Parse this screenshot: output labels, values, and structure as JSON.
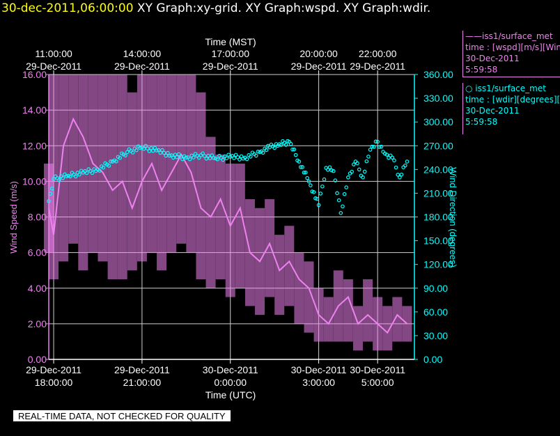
{
  "header": {
    "timestamp": "30-dec-2011,06:00:00",
    "titles": "XY Graph:xy-grid.  XY Graph:wspd.  XY Graph:wdir."
  },
  "legend": [
    {
      "line1": "——iss1/surface_met",
      "line2": "time : [wspd][m/s][Wind",
      "line3": "30-Dec-2011",
      "line4": "5:59:58",
      "color": "#ee82ee"
    },
    {
      "line1": "○ iss1/surface_met",
      "line2": "time : [wdir][degrees][W",
      "line3": "30-Dec-2011",
      "line4": "5:59:58",
      "color": "#00ffff"
    }
  ],
  "footer": {
    "warning": "REAL-TIME DATA, NOT CHECKED FOR QUALITY"
  },
  "chart_data": {
    "type": "line",
    "x_label_bottom": "Time (UTC)",
    "x_label_top": "Time (MST)",
    "ylabel_left": "Wind Speed (m/s)",
    "ylabel_right": "Wind Direction (degrees)",
    "ylim_left": [
      0,
      16
    ],
    "ylim_right": [
      0,
      360
    ],
    "xlim": [
      "2011-12-29 17:50",
      "2011-12-30 06:15"
    ],
    "grid": true,
    "yticks_left": [
      "0.00",
      "2.00",
      "4.00",
      "6.00",
      "8.00",
      "10.00",
      "12.00",
      "14.00",
      "16.00"
    ],
    "yticks_right": [
      "0.00",
      "30.00",
      "60.00",
      "90.00",
      "120.00",
      "150.00",
      "180.00",
      "210.00",
      "240.00",
      "270.00",
      "300.00",
      "330.00",
      "360.00"
    ],
    "xticks_bottom": [
      {
        "t": "2011-12-29 18:00",
        "l1": "29-Dec-2011",
        "l2": "18:00:00"
      },
      {
        "t": "2011-12-29 21:00",
        "l1": "29-Dec-2011",
        "l2": "21:00:00"
      },
      {
        "t": "2011-12-30 00:00",
        "l1": "30-Dec-2011",
        "l2": "0:00:00"
      },
      {
        "t": "2011-12-30 03:00",
        "l1": "30-Dec-2011",
        "l2": "3:00:00"
      },
      {
        "t": "2011-12-30 05:00",
        "l1": "30-Dec-2011",
        "l2": "5:00:00"
      }
    ],
    "xticks_top": [
      {
        "t": "2011-12-29 18:00",
        "l1": "11:00:00",
        "l2": "29-Dec-2011"
      },
      {
        "t": "2011-12-29 21:00",
        "l1": "14:00:00",
        "l2": "29-Dec-2011"
      },
      {
        "t": "2011-12-30 00:00",
        "l1": "17:00:00",
        "l2": "29-Dec-2011"
      },
      {
        "t": "2011-12-30 03:00",
        "l1": "20:00:00",
        "l2": "29-Dec-2011"
      },
      {
        "t": "2011-12-30 05:00",
        "l1": "22:00:00",
        "l2": "29-Dec-2011"
      }
    ],
    "series": [
      {
        "name": "iss1/surface_met wspd",
        "axis": "left",
        "color": "#ee82ee",
        "style": "line",
        "x": [
          "2011-12-29 17:50",
          "2011-12-29 18:00",
          "2011-12-29 18:20",
          "2011-12-29 18:40",
          "2011-12-29 19:00",
          "2011-12-29 19:20",
          "2011-12-29 19:40",
          "2011-12-29 20:00",
          "2011-12-29 20:20",
          "2011-12-29 20:40",
          "2011-12-29 21:00",
          "2011-12-29 21:20",
          "2011-12-29 21:40",
          "2011-12-29 22:00",
          "2011-12-29 22:20",
          "2011-12-29 22:40",
          "2011-12-29 23:00",
          "2011-12-29 23:20",
          "2011-12-29 23:40",
          "2011-12-30 00:00",
          "2011-12-30 00:20",
          "2011-12-30 00:40",
          "2011-12-30 01:00",
          "2011-12-30 01:20",
          "2011-12-30 01:40",
          "2011-12-30 02:00",
          "2011-12-30 02:20",
          "2011-12-30 02:40",
          "2011-12-30 03:00",
          "2011-12-30 03:20",
          "2011-12-30 03:40",
          "2011-12-30 04:00",
          "2011-12-30 04:20",
          "2011-12-30 04:40",
          "2011-12-30 05:00",
          "2011-12-30 05:20",
          "2011-12-30 05:40",
          "2011-12-30 06:00"
        ],
        "y": [
          8.5,
          7.0,
          12.0,
          13.5,
          12.5,
          11.0,
          10.5,
          9.5,
          10.0,
          8.5,
          10.0,
          11.0,
          9.5,
          10.5,
          11.5,
          10.5,
          8.5,
          8.0,
          9.0,
          7.5,
          8.5,
          6.0,
          5.5,
          6.5,
          5.0,
          5.5,
          4.5,
          4.0,
          2.5,
          2.0,
          3.0,
          3.5,
          2.0,
          2.5,
          2.0,
          1.5,
          2.5,
          2.0
        ],
        "hi": [
          11.0,
          16.0,
          16.0,
          16.0,
          16.0,
          16.0,
          16.0,
          16.0,
          16.0,
          15.0,
          16.0,
          16.0,
          16.0,
          16.0,
          16.0,
          16.0,
          15.0,
          12.5,
          11.5,
          11.0,
          11.0,
          9.0,
          8.5,
          9.0,
          7.0,
          7.5,
          6.0,
          5.5,
          4.0,
          3.5,
          5.0,
          4.5,
          3.0,
          4.5,
          3.5,
          3.0,
          3.5,
          3.0
        ],
        "lo": [
          6.0,
          4.5,
          5.5,
          6.5,
          5.0,
          6.0,
          5.5,
          4.5,
          4.5,
          5.0,
          5.5,
          6.0,
          5.0,
          6.0,
          6.5,
          6.0,
          4.5,
          4.0,
          4.5,
          3.5,
          4.0,
          3.0,
          2.5,
          3.5,
          2.5,
          3.0,
          2.0,
          1.5,
          1.0,
          1.0,
          1.0,
          1.0,
          0.5,
          1.0,
          0.5,
          0.5,
          1.0,
          1.0
        ]
      },
      {
        "name": "iss1/surface_met wdir",
        "axis": "right",
        "color": "#00ffff",
        "style": "markers",
        "x": [
          "2011-12-29 17:50",
          "2011-12-29 18:00",
          "2011-12-29 18:30",
          "2011-12-29 19:00",
          "2011-12-29 19:30",
          "2011-12-29 20:00",
          "2011-12-29 20:30",
          "2011-12-29 21:00",
          "2011-12-29 21:30",
          "2011-12-29 22:00",
          "2011-12-29 22:30",
          "2011-12-29 23:00",
          "2011-12-29 23:30",
          "2011-12-30 00:00",
          "2011-12-30 00:30",
          "2011-12-30 01:00",
          "2011-12-30 01:20",
          "2011-12-30 01:40",
          "2011-12-30 02:00",
          "2011-12-30 02:20",
          "2011-12-30 02:40",
          "2011-12-30 03:00",
          "2011-12-30 03:15",
          "2011-12-30 03:30",
          "2011-12-30 03:45",
          "2011-12-30 04:00",
          "2011-12-30 04:15",
          "2011-12-30 04:30",
          "2011-12-30 04:45",
          "2011-12-30 05:00",
          "2011-12-30 05:15",
          "2011-12-30 05:30",
          "2011-12-30 05:45",
          "2011-12-30 06:00"
        ],
        "y": [
          200,
          228,
          232,
          236,
          240,
          250,
          262,
          268,
          264,
          258,
          255,
          258,
          254,
          256,
          255,
          262,
          268,
          272,
          275,
          250,
          225,
          195,
          242,
          238,
          185,
          230,
          250,
          230,
          265,
          275,
          260,
          255,
          230,
          250
        ]
      }
    ]
  }
}
